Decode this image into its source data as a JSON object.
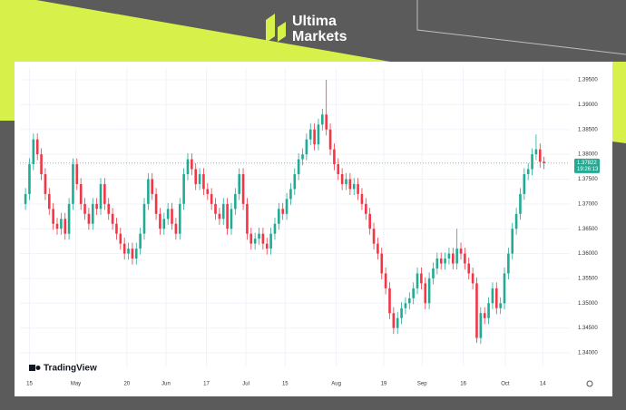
{
  "brand": {
    "line1": "Ultima",
    "line2": "Markets",
    "platform": "TradingView"
  },
  "chart_data": {
    "type": "candlestick",
    "up_color": "#22ab94",
    "down_color": "#f23645",
    "grid": true,
    "xlim": [
      -1.4,
      137.5
    ],
    "xticks": [
      {
        "value": 1,
        "label": "15"
      },
      {
        "value": 12.7,
        "label": "May"
      },
      {
        "value": 25.6,
        "label": "20"
      },
      {
        "value": 35.5,
        "label": "Jun"
      },
      {
        "value": 45.7,
        "label": "17"
      },
      {
        "value": 55.7,
        "label": "Jul"
      },
      {
        "value": 65.6,
        "label": "15"
      },
      {
        "value": 78.5,
        "label": "Aug"
      },
      {
        "value": 90.5,
        "label": "19"
      },
      {
        "value": 100.2,
        "label": "Sep"
      },
      {
        "value": 110.6,
        "label": "16"
      },
      {
        "value": 121.2,
        "label": "Oct"
      },
      {
        "value": 130.7,
        "label": "14"
      }
    ],
    "ylim": [
      1.33726,
      1.39738
    ],
    "yticks": [
      {
        "value": 1.34,
        "label": "1.34000"
      },
      {
        "value": 1.345,
        "label": "1.34500"
      },
      {
        "value": 1.35,
        "label": "1.35000"
      },
      {
        "value": 1.355,
        "label": "1.35500"
      },
      {
        "value": 1.36,
        "label": "1.36000"
      },
      {
        "value": 1.365,
        "label": "1.36500"
      },
      {
        "value": 1.37,
        "label": "1.37000"
      },
      {
        "value": 1.375,
        "label": "1.37500"
      },
      {
        "value": 1.38,
        "label": "1.38000"
      },
      {
        "value": 1.385,
        "label": "1.38500"
      },
      {
        "value": 1.39,
        "label": "1.39000"
      },
      {
        "value": 1.395,
        "label": "1.39500"
      }
    ],
    "last_price": {
      "value": 1.37822,
      "label": "1.37822"
    },
    "countdown": "19:26:13",
    "open": [
      1.37,
      1.372,
      1.378,
      1.383,
      1.38,
      1.376,
      1.372,
      1.369,
      1.366,
      1.365,
      1.367,
      1.364,
      1.37,
      1.378,
      1.374,
      1.37,
      1.368,
      1.366,
      1.37,
      1.369,
      1.374,
      1.37,
      1.368,
      1.366,
      1.364,
      1.362,
      1.36,
      1.361,
      1.359,
      1.361,
      1.364,
      1.37,
      1.375,
      1.372,
      1.368,
      1.365,
      1.367,
      1.369,
      1.366,
      1.364,
      1.37,
      1.376,
      1.379,
      1.377,
      1.374,
      1.376,
      1.373,
      1.372,
      1.37,
      1.368,
      1.367,
      1.37,
      1.365,
      1.369,
      1.372,
      1.376,
      1.37,
      1.364,
      1.362,
      1.363,
      1.364,
      1.362,
      1.361,
      1.364,
      1.366,
      1.369,
      1.368,
      1.371,
      1.373,
      1.376,
      1.379,
      1.38,
      1.383,
      1.385,
      1.382,
      1.386,
      1.388,
      1.385,
      1.381,
      1.378,
      1.376,
      1.374,
      1.375,
      1.373,
      1.374,
      1.372,
      1.37,
      1.368,
      1.365,
      1.362,
      1.36,
      1.356,
      1.353,
      1.348,
      1.345,
      1.347,
      1.349,
      1.35,
      1.351,
      1.353,
      1.356,
      1.354,
      1.35,
      1.355,
      1.357,
      1.359,
      1.358,
      1.359,
      1.36,
      1.358,
      1.361,
      1.36,
      1.358,
      1.356,
      1.354,
      1.343,
      1.348,
      1.347,
      1.35,
      1.353,
      1.349,
      1.35,
      1.356,
      1.36,
      1.365,
      1.368,
      1.372,
      1.376,
      1.377,
      1.38,
      1.381,
      1.3785
    ],
    "high": [
      1.3732,
      1.3792,
      1.3842,
      1.3842,
      1.3812,
      1.3772,
      1.3732,
      1.3702,
      1.3672,
      1.3682,
      1.3682,
      1.3712,
      1.3792,
      1.3792,
      1.3752,
      1.3712,
      1.3692,
      1.3712,
      1.3712,
      1.3752,
      1.3752,
      1.3712,
      1.3692,
      1.3672,
      1.3652,
      1.3632,
      1.3622,
      1.3622,
      1.3622,
      1.3652,
      1.3712,
      1.3762,
      1.3762,
      1.3732,
      1.3692,
      1.3682,
      1.3702,
      1.3702,
      1.3672,
      1.3712,
      1.3772,
      1.3802,
      1.3802,
      1.3782,
      1.3772,
      1.3772,
      1.3742,
      1.3732,
      1.3712,
      1.3692,
      1.3712,
      1.3712,
      1.3702,
      1.3732,
      1.3772,
      1.3772,
      1.3712,
      1.3652,
      1.3642,
      1.3652,
      1.3652,
      1.3632,
      1.3652,
      1.3672,
      1.3702,
      1.3702,
      1.3722,
      1.3742,
      1.3772,
      1.3802,
      1.3812,
      1.3842,
      1.3862,
      1.3862,
      1.3872,
      1.3892,
      1.395,
      1.3862,
      1.3822,
      1.3792,
      1.3772,
      1.3762,
      1.3762,
      1.3752,
      1.3752,
      1.3732,
      1.3712,
      1.3692,
      1.3662,
      1.3632,
      1.3612,
      1.3572,
      1.3542,
      1.3492,
      1.3482,
      1.3502,
      1.3512,
      1.3522,
      1.3542,
      1.3572,
      1.3572,
      1.3552,
      1.3562,
      1.3582,
      1.3602,
      1.3602,
      1.3602,
      1.3612,
      1.3612,
      1.365,
      1.3622,
      1.3612,
      1.3592,
      1.3572,
      1.3552,
      1.3492,
      1.3492,
      1.3512,
      1.3542,
      1.3542,
      1.3512,
      1.3572,
      1.3612,
      1.3662,
      1.3692,
      1.3732,
      1.3772,
      1.3782,
      1.3812,
      1.384,
      1.3822,
      1.3795
    ],
    "low": [
      1.3688,
      1.3708,
      1.3768,
      1.3788,
      1.3748,
      1.3708,
      1.3678,
      1.3648,
      1.3638,
      1.3638,
      1.3628,
      1.3628,
      1.3688,
      1.3728,
      1.3688,
      1.3668,
      1.3648,
      1.3648,
      1.3678,
      1.3678,
      1.3688,
      1.3668,
      1.3648,
      1.3628,
      1.3608,
      1.3588,
      1.3588,
      1.3578,
      1.3578,
      1.3598,
      1.3628,
      1.3688,
      1.3708,
      1.3668,
      1.3638,
      1.3638,
      1.3658,
      1.3648,
      1.3628,
      1.3628,
      1.3688,
      1.3748,
      1.3758,
      1.3728,
      1.3728,
      1.3718,
      1.3708,
      1.3688,
      1.3668,
      1.3658,
      1.3658,
      1.3638,
      1.3638,
      1.3678,
      1.3708,
      1.3688,
      1.3628,
      1.3608,
      1.3608,
      1.3618,
      1.3608,
      1.3598,
      1.3598,
      1.3628,
      1.3648,
      1.3668,
      1.3668,
      1.3698,
      1.3718,
      1.3748,
      1.3778,
      1.3788,
      1.3818,
      1.3808,
      1.3808,
      1.3848,
      1.3838,
      1.3798,
      1.3768,
      1.3748,
      1.3728,
      1.3728,
      1.3718,
      1.3718,
      1.3708,
      1.3688,
      1.3668,
      1.3638,
      1.3608,
      1.3588,
      1.3548,
      1.3518,
      1.3468,
      1.3438,
      1.3438,
      1.3458,
      1.3478,
      1.3488,
      1.3498,
      1.3518,
      1.3528,
      1.3488,
      1.3488,
      1.3538,
      1.3558,
      1.3568,
      1.3568,
      1.3578,
      1.3568,
      1.3568,
      1.3588,
      1.3568,
      1.3548,
      1.3528,
      1.342,
      1.3418,
      1.3458,
      1.3458,
      1.3488,
      1.3478,
      1.3478,
      1.3488,
      1.3548,
      1.3588,
      1.3638,
      1.3668,
      1.3708,
      1.3748,
      1.3758,
      1.3788,
      1.3773,
      1.377
    ],
    "close": [
      1.372,
      1.378,
      1.383,
      1.38,
      1.376,
      1.372,
      1.369,
      1.366,
      1.365,
      1.367,
      1.364,
      1.37,
      1.378,
      1.374,
      1.37,
      1.368,
      1.366,
      1.37,
      1.369,
      1.374,
      1.37,
      1.368,
      1.366,
      1.364,
      1.362,
      1.36,
      1.361,
      1.359,
      1.361,
      1.364,
      1.37,
      1.375,
      1.372,
      1.368,
      1.365,
      1.367,
      1.369,
      1.366,
      1.364,
      1.37,
      1.376,
      1.379,
      1.377,
      1.374,
      1.376,
      1.373,
      1.372,
      1.37,
      1.368,
      1.367,
      1.37,
      1.365,
      1.369,
      1.372,
      1.376,
      1.37,
      1.364,
      1.362,
      1.363,
      1.364,
      1.362,
      1.361,
      1.364,
      1.366,
      1.369,
      1.368,
      1.371,
      1.373,
      1.376,
      1.379,
      1.38,
      1.383,
      1.385,
      1.382,
      1.386,
      1.388,
      1.385,
      1.381,
      1.378,
      1.376,
      1.374,
      1.375,
      1.373,
      1.374,
      1.372,
      1.37,
      1.368,
      1.365,
      1.362,
      1.36,
      1.356,
      1.353,
      1.348,
      1.345,
      1.347,
      1.349,
      1.35,
      1.351,
      1.353,
      1.356,
      1.354,
      1.35,
      1.355,
      1.357,
      1.359,
      1.358,
      1.359,
      1.36,
      1.358,
      1.361,
      1.36,
      1.358,
      1.356,
      1.354,
      1.343,
      1.348,
      1.347,
      1.35,
      1.353,
      1.349,
      1.35,
      1.356,
      1.36,
      1.365,
      1.368,
      1.372,
      1.376,
      1.377,
      1.38,
      1.381,
      1.3785,
      1.3782
    ]
  }
}
